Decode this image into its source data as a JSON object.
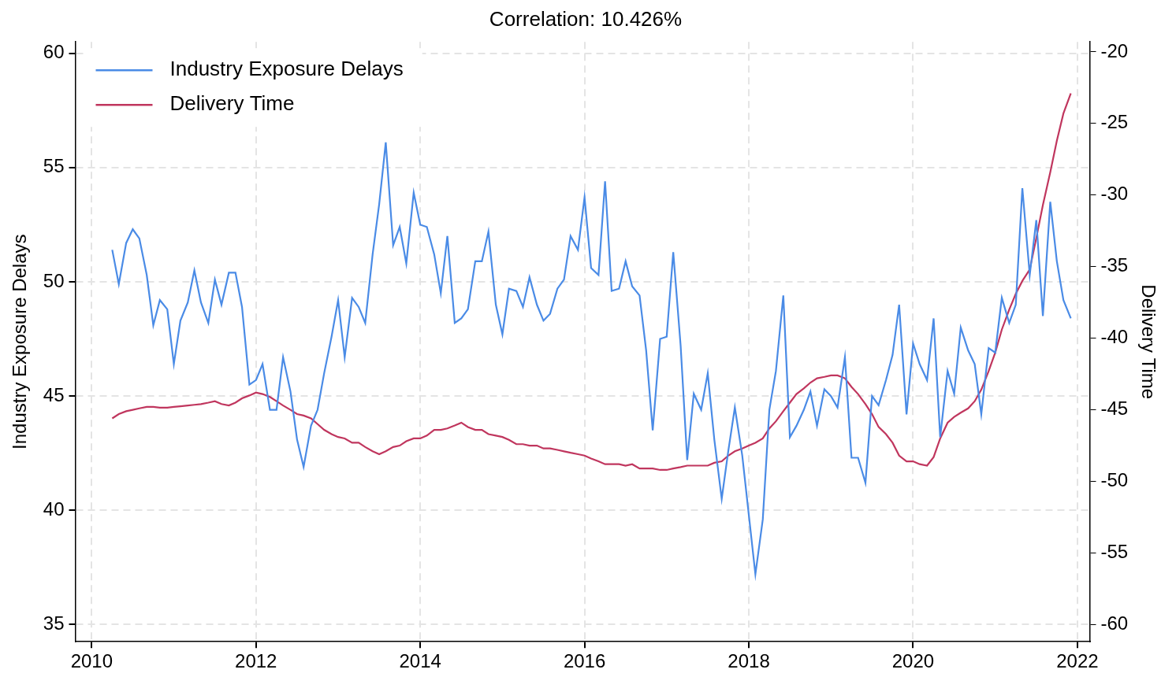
{
  "chart_data": {
    "type": "line",
    "title": "Correlation: 10.426%",
    "y_label": "Industry Exposure Delays",
    "y2_label": "Delivery Time",
    "x": [
      2010.25,
      2010.33,
      2010.42,
      2010.5,
      2010.58,
      2010.67,
      2010.75,
      2010.83,
      2010.92,
      2011,
      2011.08,
      2011.17,
      2011.25,
      2011.33,
      2011.42,
      2011.5,
      2011.58,
      2011.67,
      2011.75,
      2011.83,
      2011.92,
      2012,
      2012.08,
      2012.17,
      2012.25,
      2012.33,
      2012.42,
      2012.5,
      2012.58,
      2012.67,
      2012.75,
      2012.83,
      2012.92,
      2013,
      2013.08,
      2013.17,
      2013.25,
      2013.33,
      2013.42,
      2013.5,
      2013.58,
      2013.67,
      2013.75,
      2013.83,
      2013.92,
      2014,
      2014.08,
      2014.17,
      2014.25,
      2014.33,
      2014.42,
      2014.5,
      2014.58,
      2014.67,
      2014.75,
      2014.83,
      2014.92,
      2015,
      2015.08,
      2015.17,
      2015.25,
      2015.33,
      2015.42,
      2015.5,
      2015.58,
      2015.67,
      2015.75,
      2015.83,
      2015.92,
      2016,
      2016.08,
      2016.17,
      2016.25,
      2016.33,
      2016.42,
      2016.5,
      2016.58,
      2016.67,
      2016.75,
      2016.83,
      2016.92,
      2017,
      2017.08,
      2017.17,
      2017.25,
      2017.33,
      2017.42,
      2017.5,
      2017.58,
      2017.67,
      2017.75,
      2017.83,
      2017.92,
      2018,
      2018.08,
      2018.17,
      2018.25,
      2018.33,
      2018.42,
      2018.5,
      2018.58,
      2018.67,
      2018.75,
      2018.83,
      2018.92,
      2019,
      2019.08,
      2019.17,
      2019.25,
      2019.33,
      2019.42,
      2019.5,
      2019.58,
      2019.67,
      2019.75,
      2019.83,
      2019.92,
      2020,
      2020.08,
      2020.17,
      2020.25,
      2020.33,
      2020.42,
      2020.5,
      2020.58,
      2020.67,
      2020.75,
      2020.83,
      2020.92,
      2021,
      2021.08,
      2021.17,
      2021.25,
      2021.33,
      2021.42,
      2021.5,
      2021.58,
      2021.67,
      2021.75,
      2021.83,
      2021.92
    ],
    "series": [
      {
        "name": "Industry Exposure Delays",
        "color": "#4a8be6",
        "axis": "y",
        "values": [
          51.4,
          49.9,
          51.7,
          52.3,
          51.9,
          50.3,
          48.1,
          49.2,
          48.8,
          46.4,
          48.3,
          49.1,
          50.5,
          49.1,
          48.2,
          50.1,
          49.0,
          50.4,
          50.4,
          48.9,
          45.5,
          45.7,
          46.4,
          44.4,
          44.4,
          46.7,
          45.2,
          43.1,
          41.9,
          43.7,
          44.4,
          46.0,
          47.6,
          49.2,
          46.7,
          49.3,
          48.9,
          48.2,
          51.2,
          53.4,
          56.1,
          51.6,
          52.4,
          50.8,
          53.9,
          52.5,
          52.4,
          51.2,
          49.5,
          52.0,
          48.2,
          48.4,
          48.8,
          50.9,
          50.9,
          52.2,
          49.0,
          47.7,
          49.7,
          49.6,
          48.9,
          50.2,
          49.0,
          48.3,
          48.6,
          49.7,
          50.1,
          52.0,
          51.4,
          53.7,
          50.6,
          50.3,
          54.4,
          49.6,
          49.7,
          50.9,
          49.8,
          49.4,
          47.0,
          43.5,
          47.5,
          47.6,
          51.3,
          47.2,
          42.2,
          45.1,
          44.4,
          46.0,
          43.1,
          40.5,
          42.6,
          44.5,
          42.4,
          39.8,
          37.2,
          39.6,
          44.4,
          46.1,
          49.4,
          43.2,
          43.7,
          44.4,
          45.2,
          43.7,
          45.3,
          45.0,
          44.5,
          46.7,
          42.3,
          42.3,
          41.2,
          45.0,
          44.6,
          45.7,
          46.8,
          49.0,
          44.2,
          47.3,
          46.4,
          45.7,
          48.4,
          43.2,
          46.1,
          45.1,
          48.0,
          47.0,
          46.4,
          44.2,
          47.1,
          46.9,
          49.3,
          48.2,
          49.0,
          54.1,
          50.3,
          52.7,
          48.5,
          53.5,
          50.9,
          49.2,
          48.4
        ]
      },
      {
        "name": "Delivery Time",
        "color": "#c0365e",
        "axis": "y2",
        "values": [
          -45.6,
          -45.3,
          -45.1,
          -45.0,
          -44.9,
          -44.8,
          -44.8,
          -44.85,
          -44.85,
          -44.8,
          -44.75,
          -44.7,
          -44.65,
          -44.6,
          -44.5,
          -44.4,
          -44.6,
          -44.7,
          -44.5,
          -44.2,
          -44.0,
          -43.8,
          -43.9,
          -44.1,
          -44.4,
          -44.7,
          -45.0,
          -45.3,
          -45.4,
          -45.6,
          -46.0,
          -46.4,
          -46.7,
          -46.9,
          -47.0,
          -47.3,
          -47.3,
          -47.6,
          -47.9,
          -48.1,
          -47.9,
          -47.6,
          -47.5,
          -47.2,
          -47.0,
          -47.0,
          -46.8,
          -46.4,
          -46.4,
          -46.3,
          -46.1,
          -45.9,
          -46.2,
          -46.4,
          -46.4,
          -46.7,
          -46.8,
          -46.9,
          -47.1,
          -47.4,
          -47.4,
          -47.5,
          -47.5,
          -47.7,
          -47.7,
          -47.8,
          -47.9,
          -48.0,
          -48.1,
          -48.2,
          -48.4,
          -48.6,
          -48.8,
          -48.8,
          -48.8,
          -48.9,
          -48.8,
          -49.1,
          -49.1,
          -49.1,
          -49.2,
          -49.2,
          -49.1,
          -49.0,
          -48.9,
          -48.9,
          -48.9,
          -48.9,
          -48.7,
          -48.6,
          -48.2,
          -47.9,
          -47.7,
          -47.5,
          -47.3,
          -47.0,
          -46.3,
          -45.8,
          -45.1,
          -44.5,
          -43.9,
          -43.5,
          -43.1,
          -42.8,
          -42.7,
          -42.6,
          -42.6,
          -42.8,
          -43.4,
          -43.9,
          -44.6,
          -45.3,
          -46.2,
          -46.7,
          -47.3,
          -48.2,
          -48.6,
          -48.6,
          -48.8,
          -48.9,
          -48.3,
          -47.0,
          -45.9,
          -45.5,
          -45.2,
          -44.9,
          -44.4,
          -43.6,
          -42.3,
          -41.0,
          -39.4,
          -38.0,
          -36.9,
          -36.0,
          -35.2,
          -33.0,
          -30.7,
          -28.4,
          -26.2,
          -24.3,
          -22.9
        ]
      }
    ],
    "xlim": [
      2009.8,
      2022.15
    ],
    "xticks": [
      2010,
      2012,
      2014,
      2016,
      2018,
      2020,
      2022
    ],
    "ylim": [
      34.25,
      60.5
    ],
    "yticks": [
      35,
      40,
      45,
      50,
      55,
      60
    ],
    "y2lim": [
      -61.2,
      -19.3
    ],
    "y2ticks": [
      -60,
      -55,
      -50,
      -45,
      -40,
      -35,
      -30,
      -25,
      -20
    ],
    "grid": true,
    "legend": "upper left"
  }
}
